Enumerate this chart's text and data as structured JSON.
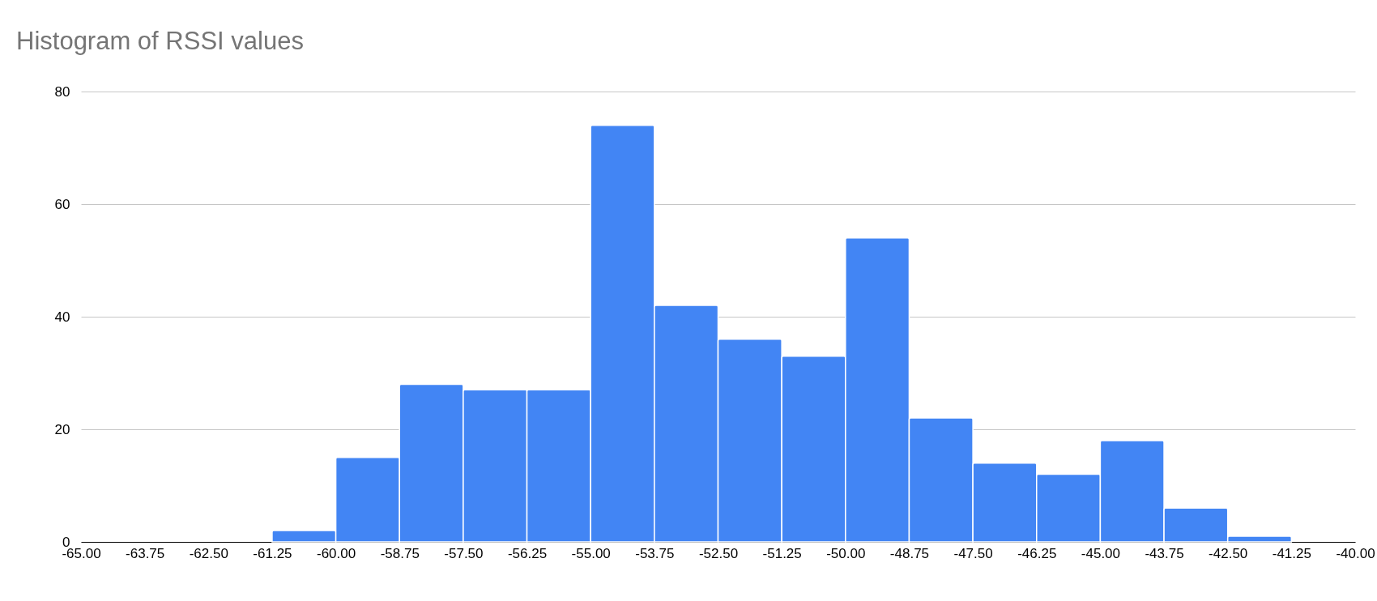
{
  "chart_data": {
    "type": "histogram",
    "title": "Histogram of RSSI values",
    "bins": [
      -65,
      -63.75,
      -62.5,
      -61.25,
      -60,
      -58.75,
      -57.5,
      -56.25,
      -55,
      -53.75,
      -52.5,
      -51.25,
      -50,
      -48.75,
      -47.5,
      -46.25,
      -45,
      -43.75,
      -42.5,
      -41.25,
      -40
    ],
    "values": [
      0,
      0,
      0,
      2,
      15,
      28,
      27,
      27,
      74,
      42,
      36,
      33,
      54,
      22,
      14,
      12,
      18,
      6,
      1,
      0
    ],
    "color": "#4285f4",
    "xlim": [
      -65,
      -40
    ],
    "xticks": [
      {
        "value": -65,
        "label": "-65.00"
      },
      {
        "value": -63.75,
        "label": "-63.75"
      },
      {
        "value": -62.5,
        "label": "-62.50"
      },
      {
        "value": -61.25,
        "label": "-61.25"
      },
      {
        "value": -60,
        "label": "-60.00"
      },
      {
        "value": -58.75,
        "label": "-58.75"
      },
      {
        "value": -57.5,
        "label": "-57.50"
      },
      {
        "value": -56.25,
        "label": "-56.25"
      },
      {
        "value": -55,
        "label": "-55.00"
      },
      {
        "value": -53.75,
        "label": "-53.75"
      },
      {
        "value": -52.5,
        "label": "-52.50"
      },
      {
        "value": -51.25,
        "label": "-51.25"
      },
      {
        "value": -50,
        "label": "-50.00"
      },
      {
        "value": -48.75,
        "label": "-48.75"
      },
      {
        "value": -47.5,
        "label": "-47.50"
      },
      {
        "value": -46.25,
        "label": "-46.25"
      },
      {
        "value": -45,
        "label": "-45.00"
      },
      {
        "value": -43.75,
        "label": "-43.75"
      },
      {
        "value": -42.5,
        "label": "-42.50"
      },
      {
        "value": -41.25,
        "label": "-41.25"
      },
      {
        "value": -40,
        "label": "-40.00"
      }
    ],
    "ylim": [
      0,
      80
    ],
    "yticks": [
      0,
      20,
      40,
      60,
      80
    ],
    "grid": "y"
  }
}
